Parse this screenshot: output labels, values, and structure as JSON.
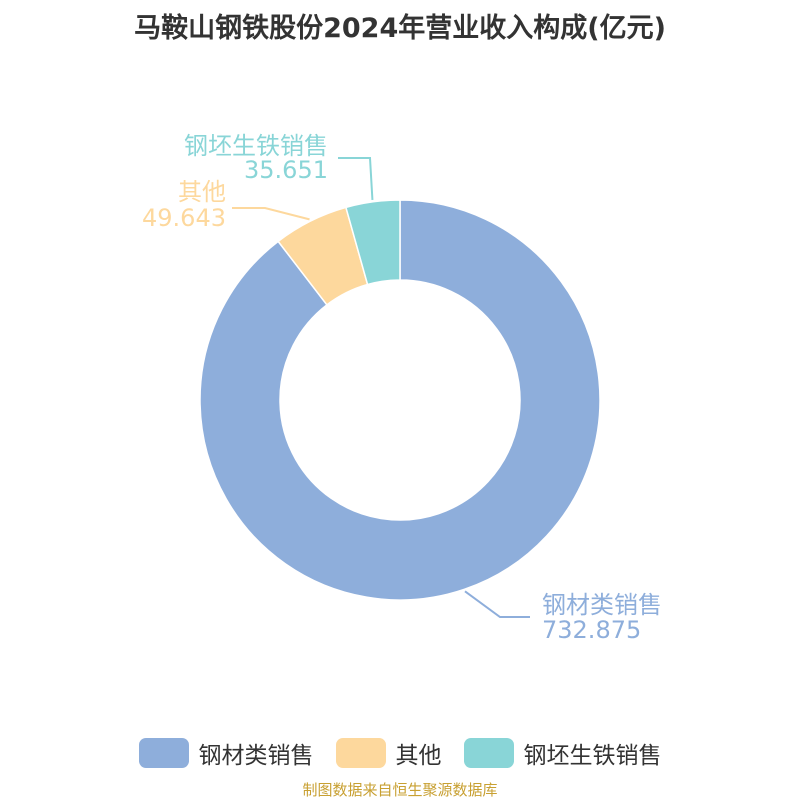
{
  "chart_data": {
    "type": "pie",
    "title": "马鞍山钢铁股份2024年营业收入构成(亿元)",
    "categories": [
      "钢材类销售",
      "其他",
      "钢坯生铁销售"
    ],
    "values": [
      732.875,
      49.643,
      35.651
    ],
    "value_labels": [
      "732.875",
      "49.643",
      "35.651"
    ],
    "colors": [
      "#8eaedb",
      "#fdd89d",
      "#89d5d7"
    ],
    "legend_position": "bottom"
  },
  "source": "制图数据来自恒生聚源数据库"
}
